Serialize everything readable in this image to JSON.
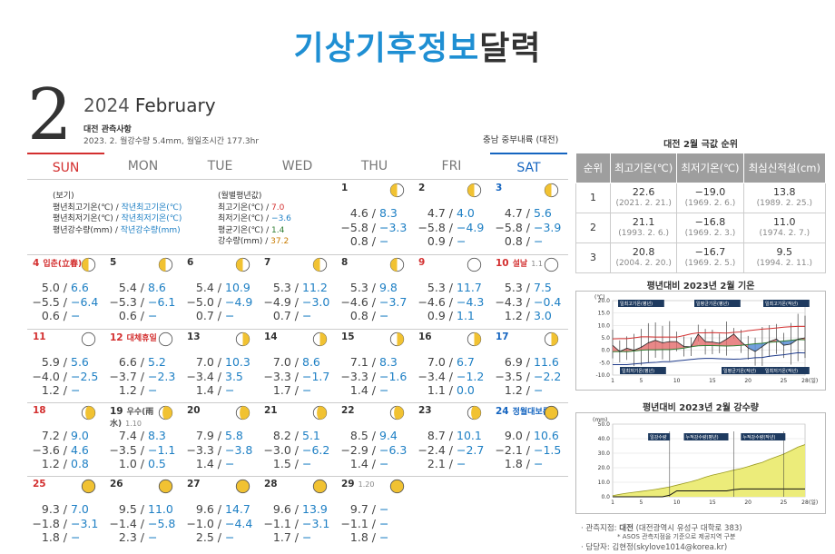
{
  "title_a": "기상기후정보",
  "title_b": "달력",
  "month_num": "2",
  "year": "2024",
  "month_name": "February",
  "station": "대전 관측사항",
  "summary": "2023. 2. 월강수량 5.4mm, 월일조시간 177.3hr",
  "region": "충남 중부내륙 (대전)",
  "weekdays": [
    "SUN",
    "MON",
    "TUE",
    "WED",
    "THU",
    "FRI",
    "SAT"
  ],
  "legend1": {
    "h": "(보기)",
    "l1a": "평년최고기온(℃) /",
    "l1b": "작년최고기온(℃)",
    "l2a": "평년최저기온(℃) /",
    "l2b": "작년최저기온(℃)",
    "l3a": "평년강수량(mm) /",
    "l3b": "작년강수량(mm)"
  },
  "legend2": {
    "h": "(월별평년값)",
    "a": "최고기온(℃) /",
    "av": "7.0",
    "b": "최저기온(℃) /",
    "bv": "−3.6",
    "c": "평균기온(℃) /",
    "cv": "1.4",
    "d": "강수량(mm) /",
    "dv": "37.2"
  },
  "days": [
    {
      "d": "1",
      "moon": "third",
      "v": [
        [
          "4.6 /",
          "8.3"
        ],
        [
          "−5.8 /",
          "−3.3"
        ],
        [
          "0.8 /",
          "−"
        ]
      ]
    },
    {
      "d": "2",
      "moon": "third",
      "v": [
        [
          "4.7 /",
          "4.0"
        ],
        [
          "−5.8 /",
          "−4.9"
        ],
        [
          "0.9 /",
          "−"
        ]
      ]
    },
    {
      "d": "3",
      "moon": "third",
      "v": [
        [
          "4.7 /",
          "5.6"
        ],
        [
          "−5.8 /",
          "−3.9"
        ],
        [
          "0.8 /",
          "−"
        ]
      ]
    },
    {
      "d": "4",
      "hol": "입춘(立春)",
      "moon": "third",
      "v": [
        [
          "5.0 /",
          "6.6"
        ],
        [
          "−5.5 /",
          "−6.4"
        ],
        [
          "0.6 /",
          "−"
        ]
      ]
    },
    {
      "d": "5",
      "moon": "third",
      "v": [
        [
          "5.4 /",
          "8.6"
        ],
        [
          "−5.3 /",
          "−6.1"
        ],
        [
          "0.6 /",
          "−"
        ]
      ]
    },
    {
      "d": "6",
      "moon": "third",
      "v": [
        [
          "5.4 /",
          "10.9"
        ],
        [
          "−5.0 /",
          "−4.9"
        ],
        [
          "0.7 /",
          "−"
        ]
      ]
    },
    {
      "d": "7",
      "moon": "third",
      "v": [
        [
          "5.3 /",
          "11.2"
        ],
        [
          "−4.9 /",
          "−3.0"
        ],
        [
          "0.7 /",
          "−"
        ]
      ]
    },
    {
      "d": "8",
      "moon": "third",
      "v": [
        [
          "5.3 /",
          "9.8"
        ],
        [
          "−4.6 /",
          "−3.7"
        ],
        [
          "0.8 /",
          "−"
        ]
      ]
    },
    {
      "d": "9",
      "moon": "new",
      "v": [
        [
          "5.3 /",
          "11.7"
        ],
        [
          "−4.6 /",
          "−4.3"
        ],
        [
          "0.9 /",
          "1.1"
        ]
      ]
    },
    {
      "d": "10",
      "hol": "설날",
      "sub": "1.1",
      "moon": "new",
      "v": [
        [
          "5.3 /",
          "7.5"
        ],
        [
          "−4.3 /",
          "−0.4"
        ],
        [
          "1.2 /",
          "3.0"
        ]
      ]
    },
    {
      "d": "11",
      "moon": "new",
      "v": [
        [
          "5.9 /",
          "5.6"
        ],
        [
          "−4.0 /",
          "−2.5"
        ],
        [
          "1.2 /",
          "−"
        ]
      ]
    },
    {
      "d": "12",
      "hol": "대체휴일",
      "moon": "new",
      "v": [
        [
          "6.6 /",
          "5.2"
        ],
        [
          "−3.7 /",
          "−2.3"
        ],
        [
          "1.2 /",
          "−"
        ]
      ]
    },
    {
      "d": "13",
      "moon": "first",
      "v": [
        [
          "7.0 /",
          "10.3"
        ],
        [
          "−3.4 /",
          "3.5"
        ],
        [
          "1.4 /",
          "−"
        ]
      ]
    },
    {
      "d": "14",
      "moon": "first",
      "v": [
        [
          "7.0 /",
          "8.6"
        ],
        [
          "−3.3 /",
          "−1.7"
        ],
        [
          "1.7 /",
          "−"
        ]
      ]
    },
    {
      "d": "15",
      "moon": "first",
      "v": [
        [
          "7.1 /",
          "8.3"
        ],
        [
          "−3.3 /",
          "−1.6"
        ],
        [
          "1.4 /",
          "−"
        ]
      ]
    },
    {
      "d": "16",
      "moon": "first",
      "v": [
        [
          "7.0 /",
          "6.7"
        ],
        [
          "−3.4 /",
          "−1.2"
        ],
        [
          "1.1 /",
          "0.0"
        ]
      ]
    },
    {
      "d": "17",
      "moon": "first",
      "v": [
        [
          "6.9 /",
          "11.6"
        ],
        [
          "−3.5 /",
          "−2.2"
        ],
        [
          "1.2 /",
          "−"
        ]
      ]
    },
    {
      "d": "18",
      "moon": "gib",
      "v": [
        [
          "7.2 /",
          "9.0"
        ],
        [
          "−3.6 /",
          "4.6"
        ],
        [
          "1.2 /",
          "0.8"
        ]
      ]
    },
    {
      "d": "19",
      "hol": "우수(雨水)",
      "sub": "1.10",
      "moon": "gib",
      "v": [
        [
          "7.4 /",
          "8.3"
        ],
        [
          "−3.5 /",
          "−1.1"
        ],
        [
          "1.0 /",
          "0.5"
        ]
      ]
    },
    {
      "d": "20",
      "moon": "gib",
      "v": [
        [
          "7.9 /",
          "5.8"
        ],
        [
          "−3.3 /",
          "−3.8"
        ],
        [
          "1.4 /",
          "−"
        ]
      ]
    },
    {
      "d": "21",
      "moon": "gib",
      "v": [
        [
          "8.2 /",
          "5.1"
        ],
        [
          "−3.0 /",
          "−6.2"
        ],
        [
          "1.5 /",
          "−"
        ]
      ]
    },
    {
      "d": "22",
      "moon": "gib",
      "v": [
        [
          "8.5 /",
          "9.4"
        ],
        [
          "−2.9 /",
          "−6.3"
        ],
        [
          "1.4 /",
          "−"
        ]
      ]
    },
    {
      "d": "23",
      "moon": "gib",
      "v": [
        [
          "8.7 /",
          "10.1"
        ],
        [
          "−2.4 /",
          "−2.7"
        ],
        [
          "2.1 /",
          "−"
        ]
      ]
    },
    {
      "d": "24",
      "hol": "정월대보름",
      "moon": "full",
      "v": [
        [
          "9.0 /",
          "10.6"
        ],
        [
          "−2.1 /",
          "−1.5"
        ],
        [
          "1.8 /",
          "−"
        ]
      ]
    },
    {
      "d": "25",
      "moon": "full",
      "v": [
        [
          "9.3 /",
          "7.0"
        ],
        [
          "−1.8 /",
          "−3.1"
        ],
        [
          "1.8 /",
          "−"
        ]
      ]
    },
    {
      "d": "26",
      "moon": "full",
      "v": [
        [
          "9.5 /",
          "11.0"
        ],
        [
          "−1.4 /",
          "−5.8"
        ],
        [
          "2.3 /",
          "−"
        ]
      ]
    },
    {
      "d": "27",
      "moon": "full",
      "v": [
        [
          "9.6 /",
          "14.7"
        ],
        [
          "−1.0 /",
          "−4.4"
        ],
        [
          "2.5 /",
          "−"
        ]
      ]
    },
    {
      "d": "28",
      "moon": "full",
      "v": [
        [
          "9.6 /",
          "13.9"
        ],
        [
          "−1.1 /",
          "−3.1"
        ],
        [
          "1.7 /",
          "−"
        ]
      ]
    },
    {
      "d": "29",
      "sub": "1.20",
      "moon": "full",
      "v": [
        [
          "9.7 /",
          "−"
        ],
        [
          "−1.1 /",
          "−"
        ],
        [
          "1.8 /",
          "−"
        ]
      ]
    }
  ],
  "rank": {
    "title": "대전 2월 극값 순위",
    "headers": [
      "순위",
      "최고기온(℃)",
      "최저기온(℃)",
      "최심신적설(cm)"
    ],
    "rows": [
      [
        "1",
        "22.6",
        "(2021. 2. 21.)",
        "−19.0",
        "(1969. 2. 6.)",
        "13.8",
        "(1989. 2. 25.)"
      ],
      [
        "2",
        "21.1",
        "(1993. 2. 6.)",
        "−16.8",
        "(1969. 2. 3.)",
        "11.0",
        "(1974. 2. 7.)"
      ],
      [
        "3",
        "20.8",
        "(2004. 2. 20.)",
        "−16.7",
        "(1969. 2. 5.)",
        "9.5",
        "(1994. 2. 11.)"
      ]
    ]
  },
  "chart1_title": "평년대비 2023년 2월 기온",
  "chart2_title": "평년대비 2023년 2월 강수량",
  "chart_data": [
    {
      "type": "line",
      "title": "평년대비 2023년 2월 기온",
      "ylabel": "(℃)",
      "xlabel": "(일)",
      "ylim": [
        -10,
        20
      ],
      "yticks": [
        "20.0",
        "15.0",
        "10.0",
        "5.0",
        "0.0",
        "-5.0",
        "-10.0"
      ],
      "xticks": [
        "1",
        "5",
        "10",
        "15",
        "20",
        "25",
        "28"
      ],
      "legend": [
        "일최고기온(평년)",
        "일평균기온(평년)",
        "일최고기온(작년)",
        "일최저기온(평년)",
        "일평균기온(작년)",
        "일최저기온(작년)"
      ],
      "x": [
        1,
        2,
        3,
        4,
        5,
        6,
        7,
        8,
        9,
        10,
        11,
        12,
        13,
        14,
        15,
        16,
        17,
        18,
        19,
        20,
        21,
        22,
        23,
        24,
        25,
        26,
        27,
        28
      ],
      "series": [
        {
          "name": "일최고기온(평년)",
          "values": [
            4.6,
            4.7,
            4.7,
            5.0,
            5.4,
            5.4,
            5.3,
            5.3,
            5.3,
            5.3,
            5.9,
            6.6,
            7.0,
            7.0,
            7.1,
            7.0,
            6.9,
            7.2,
            7.4,
            7.9,
            8.2,
            8.5,
            8.7,
            9.0,
            9.3,
            9.5,
            9.6,
            9.6
          ]
        },
        {
          "name": "일최저기온(평년)",
          "values": [
            -5.8,
            -5.8,
            -5.8,
            -5.5,
            -5.3,
            -5.0,
            -4.9,
            -4.6,
            -4.6,
            -4.3,
            -4.0,
            -3.7,
            -3.4,
            -3.3,
            -3.3,
            -3.4,
            -3.5,
            -3.6,
            -3.5,
            -3.3,
            -3.0,
            -2.9,
            -2.4,
            -2.1,
            -1.8,
            -1.4,
            -1.0,
            -1.1
          ]
        },
        {
          "name": "일평균기온(평년)",
          "values": [
            -0.6,
            -0.5,
            -0.6,
            -0.3,
            0.0,
            0.2,
            0.2,
            0.3,
            0.3,
            0.5,
            0.9,
            1.4,
            1.8,
            1.9,
            1.9,
            1.8,
            1.7,
            1.8,
            2.0,
            2.3,
            2.6,
            2.8,
            3.2,
            3.4,
            3.7,
            4.0,
            4.3,
            4.2
          ]
        },
        {
          "name": "일평균기온(작년)",
          "values": [
            2.0,
            -0.5,
            0.8,
            0.0,
            1.2,
            3.0,
            4.0,
            3.0,
            3.5,
            3.5,
            1.5,
            1.4,
            6.5,
            3.5,
            3.3,
            2.8,
            4.5,
            6.5,
            3.5,
            1.0,
            -0.5,
            1.5,
            3.5,
            4.5,
            2.0,
            2.5,
            4.5,
            5.0
          ]
        },
        {
          "name": "일최고기온(작년)",
          "values": [
            8.3,
            4.0,
            5.6,
            6.6,
            8.6,
            10.9,
            11.2,
            9.8,
            11.7,
            7.5,
            5.6,
            5.2,
            10.3,
            8.6,
            8.3,
            6.7,
            11.6,
            9.0,
            8.3,
            5.8,
            5.1,
            9.4,
            10.1,
            10.6,
            7.0,
            11.0,
            14.7,
            13.9
          ]
        },
        {
          "name": "일최저기온(작년)",
          "values": [
            -3.3,
            -4.9,
            -3.9,
            -6.4,
            -6.1,
            -4.9,
            -3.0,
            -3.7,
            -4.3,
            -0.4,
            -2.5,
            -2.3,
            3.5,
            -1.7,
            -1.6,
            -1.2,
            -2.2,
            4.6,
            -1.1,
            -3.8,
            -6.2,
            -6.3,
            -2.7,
            -1.5,
            -3.1,
            -5.8,
            -4.4,
            -3.1
          ]
        }
      ]
    },
    {
      "type": "area",
      "title": "평년대비 2023년 2월 강수량",
      "ylabel": "(mm)",
      "xlabel": "(일)",
      "ylim": [
        0,
        50
      ],
      "yticks": [
        "50.0",
        "40.0",
        "30.0",
        "20.0",
        "10.0",
        "0.0"
      ],
      "xticks": [
        "1",
        "5",
        "10",
        "15",
        "20",
        "25",
        "28"
      ],
      "legend": [
        "일강수량",
        "누적강수량(평년)",
        "누적강수량(작년)"
      ],
      "x": [
        1,
        2,
        3,
        4,
        5,
        6,
        7,
        8,
        9,
        10,
        11,
        12,
        13,
        14,
        15,
        16,
        17,
        18,
        19,
        20,
        21,
        22,
        23,
        24,
        25,
        26,
        27,
        28
      ],
      "series": [
        {
          "name": "누적강수량(평년)",
          "values": [
            0.8,
            1.7,
            2.5,
            3.1,
            3.7,
            4.4,
            5.1,
            5.9,
            6.8,
            8.0,
            9.2,
            10.4,
            11.8,
            13.5,
            14.9,
            16.0,
            17.2,
            18.4,
            19.4,
            20.8,
            22.3,
            23.7,
            25.8,
            27.6,
            29.4,
            31.7,
            34.2,
            35.9
          ]
        },
        {
          "name": "누적강수량(작년)",
          "values": [
            0,
            0,
            0,
            0,
            0,
            0,
            0,
            0,
            1.1,
            4.1,
            4.1,
            4.1,
            4.1,
            4.1,
            4.1,
            4.1,
            4.1,
            4.9,
            5.4,
            5.4,
            5.4,
            5.4,
            5.4,
            5.4,
            5.4,
            5.4,
            5.4,
            5.4
          ]
        }
      ]
    }
  ],
  "foot1a": "관측지점:",
  "foot1b": "대전",
  "foot1c": "(대전광역시 유성구 대학로 383)",
  "foot2": "* ASOS 관측지점을 기준으로 제공지역 구분",
  "foot3": "담당자: 김현정(skylove1014@korea.kr)"
}
